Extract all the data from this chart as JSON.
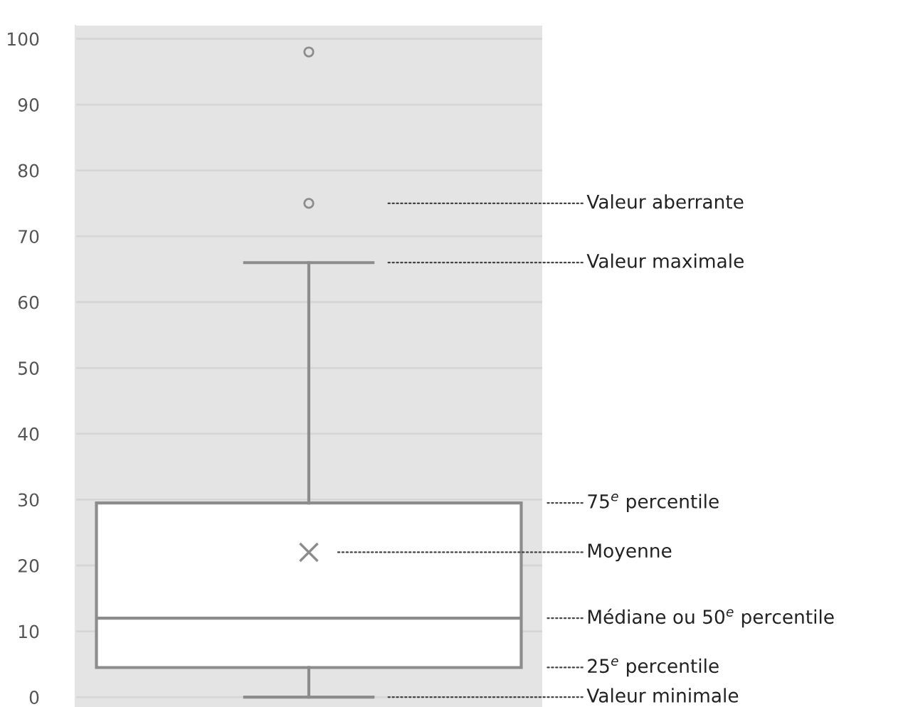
{
  "chart_data": {
    "type": "box",
    "categories": [
      null
    ],
    "boxes": [
      {
        "low": 0,
        "q1": 4.5,
        "median": 12,
        "q3": 29.5,
        "high": 66,
        "mean": 22,
        "outliers": [
          75,
          98
        ]
      }
    ],
    "ylim": [
      -1.5,
      102
    ],
    "yticks": [
      0,
      10,
      20,
      30,
      40,
      50,
      60,
      70,
      80,
      90,
      100
    ],
    "grid": "y",
    "annotations": [
      "Valeur aberrante",
      "Valeur maximale",
      "75$^{e}$ percentile",
      "Moyenne",
      "Médiane ou 50$^{e}$ percentile",
      "25$^{e}$ percentile",
      "Valeur minimale"
    ]
  }
}
